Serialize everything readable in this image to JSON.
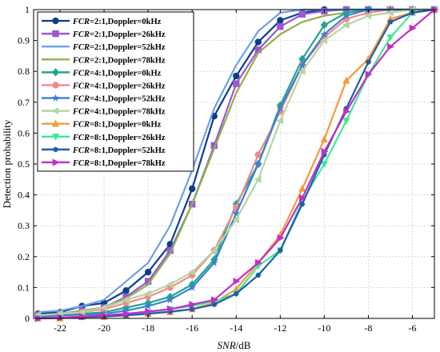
{
  "chart_data": {
    "type": "line",
    "xlabel_italic": "SNR",
    "xlabel_unit": "/dB",
    "ylabel": "Detection probability",
    "xlim": [
      -23.2,
      -5
    ],
    "ylim": [
      0,
      1
    ],
    "x_ticks": [
      -22,
      -20,
      -18,
      -16,
      -14,
      -12,
      -10,
      -8,
      -6
    ],
    "y_ticks": [
      0,
      0.1,
      0.2,
      0.3,
      0.4,
      0.5,
      0.6,
      0.7,
      0.8,
      0.9,
      1
    ],
    "grid": true,
    "legend_position": "top-left",
    "series": [
      {
        "name": "FCR=2:1,Doppler=0kHz",
        "legend_italic": "FCR",
        "legend_rest": "=2:1,Doppler=0kHz",
        "color": "#0d3f88",
        "marker": "circle",
        "x": [
          -23,
          -22,
          -21,
          -20,
          -19,
          -18,
          -17,
          -16,
          -15,
          -14,
          -13,
          -12,
          -11,
          -10,
          -9,
          -8,
          -7,
          -6,
          -5
        ],
        "y": [
          0.015,
          0.02,
          0.04,
          0.05,
          0.09,
          0.15,
          0.24,
          0.42,
          0.655,
          0.785,
          0.895,
          0.965,
          0.99,
          1,
          1,
          1,
          1,
          1,
          1
        ]
      },
      {
        "name": "FCR=2:1,Doppler=26kHz",
        "legend_italic": "FCR",
        "legend_rest": "=2:1,Doppler=26kHz",
        "color": "#9b59d0",
        "marker": "square",
        "x": [
          -23,
          -22,
          -21,
          -20,
          -19,
          -18,
          -17,
          -16,
          -15,
          -14,
          -13,
          -12,
          -11,
          -10,
          -9,
          -8,
          -7,
          -6,
          -5
        ],
        "y": [
          0.01,
          0.015,
          0.025,
          0.035,
          0.07,
          0.12,
          0.22,
          0.37,
          0.56,
          0.76,
          0.87,
          0.945,
          0.985,
          0.995,
          1,
          1,
          1,
          1,
          1
        ]
      },
      {
        "name": "FCR=2:1,Doppler=52kHz",
        "legend_italic": "FCR",
        "legend_rest": "=2:1,Doppler=52kHz",
        "color": "#6fa0e8",
        "marker": "none",
        "x": [
          -23,
          -22,
          -21,
          -20,
          -19,
          -18,
          -17,
          -16,
          -15,
          -14,
          -13,
          -12,
          -11,
          -10,
          -9,
          -8,
          -7,
          -6,
          -5
        ],
        "y": [
          0.02,
          0.025,
          0.04,
          0.06,
          0.12,
          0.18,
          0.3,
          0.48,
          0.68,
          0.82,
          0.93,
          0.99,
          1,
          1,
          1,
          1,
          1,
          1,
          1
        ]
      },
      {
        "name": "FCR=2:1,Doppler=78kHz",
        "legend_italic": "FCR",
        "legend_rest": "=2:1,Doppler=78kHz",
        "color": "#8fb04c",
        "marker": "none",
        "x": [
          -23,
          -22,
          -21,
          -20,
          -19,
          -18,
          -17,
          -16,
          -15,
          -14,
          -13,
          -12,
          -11,
          -10,
          -9,
          -8,
          -7,
          -6,
          -5
        ],
        "y": [
          0.01,
          0.015,
          0.025,
          0.035,
          0.065,
          0.11,
          0.21,
          0.37,
          0.55,
          0.73,
          0.86,
          0.92,
          0.96,
          0.98,
          0.99,
          1,
          1,
          1,
          1
        ]
      },
      {
        "name": "FCR=4:1,Doppler=0kHz",
        "legend_italic": "FCR",
        "legend_rest": "=4:1,Doppler=0kHz",
        "color": "#1fa888",
        "marker": "diamond",
        "x": [
          -23,
          -22,
          -21,
          -20,
          -19,
          -18,
          -17,
          -16,
          -15,
          -14,
          -13,
          -12,
          -11,
          -10,
          -9,
          -8,
          -7,
          -6,
          -5
        ],
        "y": [
          0.005,
          0.01,
          0.015,
          0.02,
          0.035,
          0.05,
          0.07,
          0.11,
          0.19,
          0.37,
          0.5,
          0.69,
          0.84,
          0.95,
          0.99,
          1,
          1,
          1,
          1
        ]
      },
      {
        "name": "FCR=4:1,Doppler=26kHz",
        "legend_italic": "FCR",
        "legend_rest": "=4:1,Doppler=26kHz",
        "color": "#f08a8a",
        "marker": "circle",
        "x": [
          -23,
          -22,
          -21,
          -20,
          -19,
          -18,
          -17,
          -16,
          -15,
          -14,
          -13,
          -12,
          -11,
          -10,
          -9,
          -8,
          -7,
          -6,
          -5
        ],
        "y": [
          0.008,
          0.012,
          0.02,
          0.03,
          0.05,
          0.07,
          0.1,
          0.14,
          0.22,
          0.36,
          0.53,
          0.67,
          0.82,
          0.91,
          0.97,
          0.99,
          1,
          1,
          1
        ]
      },
      {
        "name": "FCR=4:1,Doppler=52kHz",
        "legend_italic": "FCR",
        "legend_rest": "=4:1,Doppler=52kHz",
        "color": "#3c7fd4",
        "marker": "star",
        "x": [
          -23,
          -22,
          -21,
          -20,
          -19,
          -18,
          -17,
          -16,
          -15,
          -14,
          -13,
          -12,
          -11,
          -10,
          -9,
          -8,
          -7,
          -6,
          -5
        ],
        "y": [
          0.005,
          0.01,
          0.012,
          0.015,
          0.025,
          0.04,
          0.06,
          0.1,
          0.18,
          0.34,
          0.5,
          0.68,
          0.82,
          0.92,
          0.98,
          1,
          1,
          1,
          1
        ]
      },
      {
        "name": "FCR=4:1,Doppler=78kHz",
        "legend_italic": "FCR",
        "legend_rest": "=4:1,Doppler=78kHz",
        "color": "#b7d4a2",
        "marker": "triangle-left",
        "x": [
          -23,
          -22,
          -21,
          -20,
          -19,
          -18,
          -17,
          -16,
          -15,
          -14,
          -13,
          -12,
          -11,
          -10,
          -9,
          -8,
          -7,
          -6,
          -5
        ],
        "y": [
          0.01,
          0.015,
          0.02,
          0.035,
          0.06,
          0.08,
          0.11,
          0.15,
          0.22,
          0.32,
          0.45,
          0.64,
          0.8,
          0.9,
          0.95,
          0.98,
          0.99,
          1,
          1
        ]
      },
      {
        "name": "FCR=8:1,Doppler=0kHz",
        "legend_italic": "FCR",
        "legend_rest": "=8:1,Doppler=0kHz",
        "color": "#f59a3c",
        "marker": "triangle-up",
        "x": [
          -23,
          -22,
          -21,
          -20,
          -19,
          -18,
          -17,
          -16,
          -15,
          -14,
          -13,
          -12,
          -11,
          -10,
          -9,
          -8,
          -7,
          -6,
          -5
        ],
        "y": [
          0,
          0,
          0.005,
          0.005,
          0.01,
          0.015,
          0.02,
          0.03,
          0.05,
          0.095,
          0.18,
          0.27,
          0.42,
          0.58,
          0.77,
          0.84,
          0.97,
          0.99,
          1
        ]
      },
      {
        "name": "FCR=8:1,Doppler=26kHz",
        "legend_italic": "FCR",
        "legend_rest": "=8:1,Doppler=26kHz",
        "color": "#3fe89a",
        "marker": "triangle-down",
        "x": [
          -23,
          -22,
          -21,
          -20,
          -19,
          -18,
          -17,
          -16,
          -15,
          -14,
          -13,
          -12,
          -11,
          -10,
          -9,
          -8,
          -7,
          -6,
          -5
        ],
        "y": [
          0,
          0.002,
          0.005,
          0.008,
          0.012,
          0.02,
          0.03,
          0.04,
          0.055,
          0.08,
          0.17,
          0.22,
          0.38,
          0.5,
          0.64,
          0.79,
          0.91,
          0.99,
          1
        ]
      },
      {
        "name": "FCR=8:1,Doppler=52kHz",
        "legend_italic": "FCR",
        "legend_rest": "=8:1,Doppler=52kHz",
        "color": "#1f5ea8",
        "marker": "dot",
        "x": [
          -23,
          -22,
          -21,
          -20,
          -19,
          -18,
          -17,
          -16,
          -15,
          -14,
          -13,
          -12,
          -11,
          -10,
          -9,
          -8,
          -7,
          -6,
          -5
        ],
        "y": [
          0,
          0.002,
          0.004,
          0.006,
          0.01,
          0.015,
          0.022,
          0.03,
          0.045,
          0.08,
          0.14,
          0.22,
          0.37,
          0.53,
          0.68,
          0.83,
          0.96,
          0.99,
          1
        ]
      },
      {
        "name": "FCR=8:1,Doppler=78kHz",
        "legend_italic": "FCR",
        "legend_rest": "=8:1,Doppler=78kHz",
        "color": "#c22ec9",
        "marker": "triangle-right",
        "x": [
          -23,
          -22,
          -21,
          -20,
          -19,
          -18,
          -17,
          -16,
          -15,
          -14,
          -13,
          -12,
          -11,
          -10,
          -9,
          -8,
          -7,
          -6,
          -5
        ],
        "y": [
          0,
          0.003,
          0.006,
          0.01,
          0.015,
          0.022,
          0.03,
          0.045,
          0.06,
          0.12,
          0.18,
          0.26,
          0.39,
          0.54,
          0.67,
          0.79,
          0.88,
          0.94,
          1
        ]
      }
    ]
  }
}
